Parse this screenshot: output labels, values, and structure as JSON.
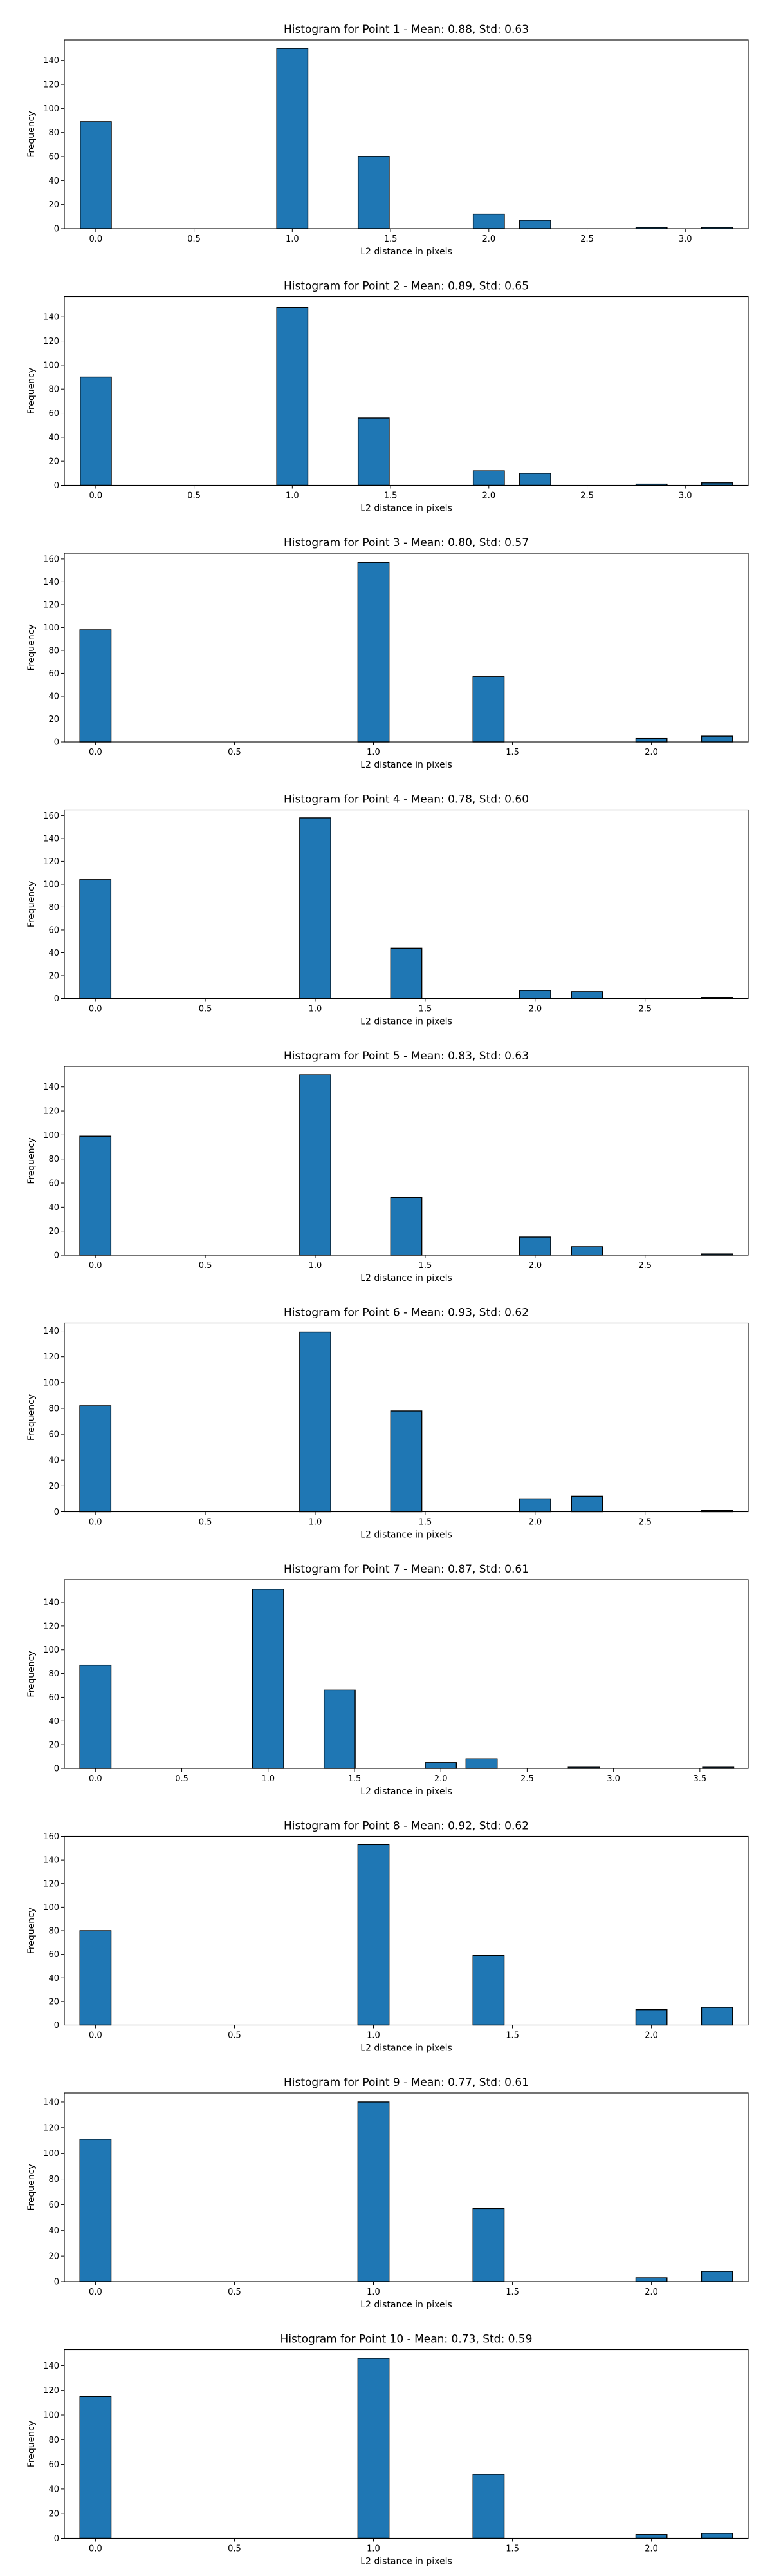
{
  "chart_data": [
    {
      "type": "bar",
      "title": "Histogram for Point 1 - Mean: 0.88, Std: 0.63",
      "xlabel": "L2 distance in pixels",
      "ylabel": "Frequency",
      "xlim": [
        -0.16,
        3.32
      ],
      "ylim": [
        0,
        157
      ],
      "xticks": [
        0.0,
        0.5,
        1.0,
        1.5,
        2.0,
        2.5,
        3.0
      ],
      "xtick_labels": [
        "0.0",
        "0.5",
        "1.0",
        "1.5",
        "2.0",
        "2.5",
        "3.0"
      ],
      "yticks": [
        0,
        20,
        40,
        60,
        80,
        100,
        120,
        140
      ],
      "bin_width": 0.1581,
      "bins": [
        {
          "x": 0.0,
          "value": 89
        },
        {
          "x": 1.0,
          "value": 150
        },
        {
          "x": 1.414,
          "value": 60
        },
        {
          "x": 2.0,
          "value": 12
        },
        {
          "x": 2.236,
          "value": 7
        },
        {
          "x": 2.828,
          "value": 1
        },
        {
          "x": 3.162,
          "value": 1
        }
      ]
    },
    {
      "type": "bar",
      "title": "Histogram for Point 2 - Mean: 0.89, Std: 0.65",
      "xlabel": "L2 distance in pixels",
      "ylabel": "Frequency",
      "xlim": [
        -0.16,
        3.32
      ],
      "ylim": [
        0,
        157
      ],
      "xticks": [
        0.0,
        0.5,
        1.0,
        1.5,
        2.0,
        2.5,
        3.0
      ],
      "xtick_labels": [
        "0.0",
        "0.5",
        "1.0",
        "1.5",
        "2.0",
        "2.5",
        "3.0"
      ],
      "yticks": [
        0,
        20,
        40,
        60,
        80,
        100,
        120,
        140
      ],
      "bin_width": 0.1581,
      "bins": [
        {
          "x": 0.0,
          "value": 90
        },
        {
          "x": 1.0,
          "value": 148
        },
        {
          "x": 1.414,
          "value": 56
        },
        {
          "x": 2.0,
          "value": 12
        },
        {
          "x": 2.236,
          "value": 10
        },
        {
          "x": 2.828,
          "value": 1
        },
        {
          "x": 3.162,
          "value": 2
        }
      ]
    },
    {
      "type": "bar",
      "title": "Histogram for Point 3 - Mean: 0.80, Std: 0.57",
      "xlabel": "L2 distance in pixels",
      "ylabel": "Frequency",
      "xlim": [
        -0.112,
        2.348
      ],
      "ylim": [
        0,
        165
      ],
      "xticks": [
        0.0,
        0.5,
        1.0,
        1.5,
        2.0
      ],
      "xtick_labels": [
        "0.0",
        "0.5",
        "1.0",
        "1.5",
        "2.0"
      ],
      "yticks": [
        0,
        20,
        40,
        60,
        80,
        100,
        120,
        140,
        160
      ],
      "bin_width": 0.1118,
      "bins": [
        {
          "x": 0.0,
          "value": 98
        },
        {
          "x": 1.0,
          "value": 157
        },
        {
          "x": 1.414,
          "value": 57
        },
        {
          "x": 2.0,
          "value": 3
        },
        {
          "x": 2.236,
          "value": 5
        }
      ]
    },
    {
      "type": "bar",
      "title": "Histogram for Point 4 - Mean: 0.78, Std: 0.60",
      "xlabel": "L2 distance in pixels",
      "ylabel": "Frequency",
      "xlim": [
        -0.141,
        2.969
      ],
      "ylim": [
        0,
        165
      ],
      "xticks": [
        0.0,
        0.5,
        1.0,
        1.5,
        2.0,
        2.5
      ],
      "xtick_labels": [
        "0.0",
        "0.5",
        "1.0",
        "1.5",
        "2.0",
        "2.5"
      ],
      "yticks": [
        0,
        20,
        40,
        60,
        80,
        100,
        120,
        140,
        160
      ],
      "bin_width": 0.1414,
      "bins": [
        {
          "x": 0.0,
          "value": 104
        },
        {
          "x": 1.0,
          "value": 158
        },
        {
          "x": 1.414,
          "value": 44
        },
        {
          "x": 2.0,
          "value": 7
        },
        {
          "x": 2.236,
          "value": 6
        },
        {
          "x": 2.828,
          "value": 1
        }
      ]
    },
    {
      "type": "bar",
      "title": "Histogram for Point 5 - Mean: 0.83, Std: 0.63",
      "xlabel": "L2 distance in pixels",
      "ylabel": "Frequency",
      "xlim": [
        -0.141,
        2.969
      ],
      "ylim": [
        0,
        157
      ],
      "xticks": [
        0.0,
        0.5,
        1.0,
        1.5,
        2.0,
        2.5
      ],
      "xtick_labels": [
        "0.0",
        "0.5",
        "1.0",
        "1.5",
        "2.0",
        "2.5"
      ],
      "yticks": [
        0,
        20,
        40,
        60,
        80,
        100,
        120,
        140
      ],
      "bin_width": 0.1414,
      "bins": [
        {
          "x": 0.0,
          "value": 99
        },
        {
          "x": 1.0,
          "value": 150
        },
        {
          "x": 1.414,
          "value": 48
        },
        {
          "x": 2.0,
          "value": 15
        },
        {
          "x": 2.236,
          "value": 7
        },
        {
          "x": 2.828,
          "value": 1
        }
      ]
    },
    {
      "type": "bar",
      "title": "Histogram for Point 6 - Mean: 0.93, Std: 0.62",
      "xlabel": "L2 distance in pixels",
      "ylabel": "Frequency",
      "xlim": [
        -0.141,
        2.969
      ],
      "ylim": [
        0,
        146
      ],
      "xticks": [
        0.0,
        0.5,
        1.0,
        1.5,
        2.0,
        2.5
      ],
      "xtick_labels": [
        "0.0",
        "0.5",
        "1.0",
        "1.5",
        "2.0",
        "2.5"
      ],
      "yticks": [
        0,
        20,
        40,
        60,
        80,
        100,
        120,
        140
      ],
      "bin_width": 0.1414,
      "bins": [
        {
          "x": 0.0,
          "value": 82
        },
        {
          "x": 1.0,
          "value": 139
        },
        {
          "x": 1.414,
          "value": 78
        },
        {
          "x": 2.0,
          "value": 10
        },
        {
          "x": 2.236,
          "value": 12
        },
        {
          "x": 2.828,
          "value": 1
        }
      ]
    },
    {
      "type": "bar",
      "title": "Histogram for Point 7 - Mean: 0.87, Std: 0.61",
      "xlabel": "L2 distance in pixels",
      "ylabel": "Frequency",
      "xlim": [
        -0.18,
        3.78
      ],
      "ylim": [
        0,
        159
      ],
      "xticks": [
        0.0,
        0.5,
        1.0,
        1.5,
        2.0,
        2.5,
        3.0,
        3.5
      ],
      "xtick_labels": [
        "0.0",
        "0.5",
        "1.0",
        "1.5",
        "2.0",
        "2.5",
        "3.0",
        "3.5"
      ],
      "yticks": [
        0,
        20,
        40,
        60,
        80,
        100,
        120,
        140
      ],
      "bin_width": 0.1803,
      "bins": [
        {
          "x": 0.0,
          "value": 87
        },
        {
          "x": 1.0,
          "value": 151
        },
        {
          "x": 1.414,
          "value": 66
        },
        {
          "x": 2.0,
          "value": 5
        },
        {
          "x": 2.236,
          "value": 8
        },
        {
          "x": 2.828,
          "value": 1
        },
        {
          "x": 3.606,
          "value": 1
        }
      ]
    },
    {
      "type": "bar",
      "title": "Histogram for Point 8 - Mean: 0.92, Std: 0.62",
      "xlabel": "L2 distance in pixels",
      "ylabel": "Frequency",
      "xlim": [
        -0.112,
        2.348
      ],
      "ylim": [
        0,
        160
      ],
      "xticks": [
        0.0,
        0.5,
        1.0,
        1.5,
        2.0
      ],
      "xtick_labels": [
        "0.0",
        "0.5",
        "1.0",
        "1.5",
        "2.0"
      ],
      "yticks": [
        0,
        20,
        40,
        60,
        80,
        100,
        120,
        140,
        160
      ],
      "bin_width": 0.1118,
      "bins": [
        {
          "x": 0.0,
          "value": 80
        },
        {
          "x": 1.0,
          "value": 153
        },
        {
          "x": 1.414,
          "value": 59
        },
        {
          "x": 2.0,
          "value": 13
        },
        {
          "x": 2.236,
          "value": 15
        }
      ]
    },
    {
      "type": "bar",
      "title": "Histogram for Point 9 - Mean: 0.77, Std: 0.61",
      "xlabel": "L2 distance in pixels",
      "ylabel": "Frequency",
      "xlim": [
        -0.112,
        2.348
      ],
      "ylim": [
        0,
        147
      ],
      "xticks": [
        0.0,
        0.5,
        1.0,
        1.5,
        2.0
      ],
      "xtick_labels": [
        "0.0",
        "0.5",
        "1.0",
        "1.5",
        "2.0"
      ],
      "yticks": [
        0,
        20,
        40,
        60,
        80,
        100,
        120,
        140
      ],
      "bin_width": 0.1118,
      "bins": [
        {
          "x": 0.0,
          "value": 111
        },
        {
          "x": 1.0,
          "value": 140
        },
        {
          "x": 1.414,
          "value": 57
        },
        {
          "x": 2.0,
          "value": 3
        },
        {
          "x": 2.236,
          "value": 8
        }
      ]
    },
    {
      "type": "bar",
      "title": "Histogram for Point 10 - Mean: 0.73, Std: 0.59",
      "xlabel": "L2 distance in pixels",
      "ylabel": "Frequency",
      "xlim": [
        -0.112,
        2.348
      ],
      "ylim": [
        0,
        153
      ],
      "xticks": [
        0.0,
        0.5,
        1.0,
        1.5,
        2.0
      ],
      "xtick_labels": [
        "0.0",
        "0.5",
        "1.0",
        "1.5",
        "2.0"
      ],
      "yticks": [
        0,
        20,
        40,
        60,
        80,
        100,
        120,
        140
      ],
      "bin_width": 0.1118,
      "bins": [
        {
          "x": 0.0,
          "value": 115
        },
        {
          "x": 1.0,
          "value": 146
        },
        {
          "x": 1.414,
          "value": 52
        },
        {
          "x": 2.0,
          "value": 3
        },
        {
          "x": 2.236,
          "value": 4
        }
      ]
    }
  ],
  "colors": {
    "bar_fill": "#1f77b4",
    "bar_edge": "#000000",
    "background": "#ffffff"
  }
}
